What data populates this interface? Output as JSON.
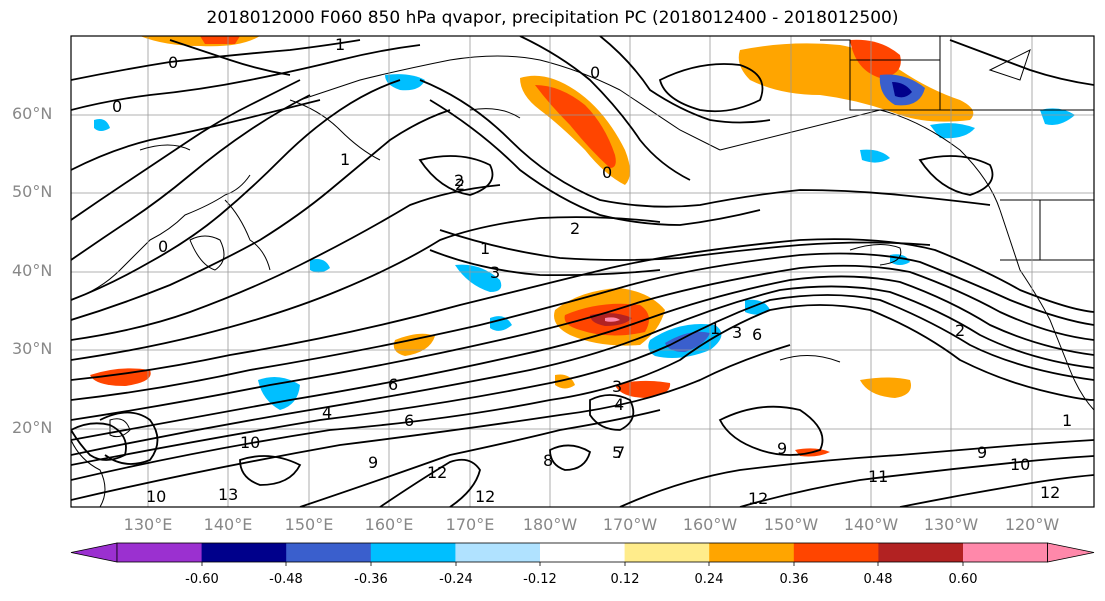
{
  "title": "2018012000 F060 850 hPa qvapor, precipitation PC (2018012400 - 2018012500)",
  "lat_labels": [
    "60°N",
    "50°N",
    "40°N",
    "30°N",
    "20°N"
  ],
  "lon_labels": [
    "130°E",
    "140°E",
    "150°E",
    "160°E",
    "170°E",
    "180°W",
    "170°W",
    "160°W",
    "150°W",
    "140°W",
    "130°W",
    "120°W"
  ],
  "colorbar": {
    "ticks": [
      "-0.60",
      "-0.48",
      "-0.36",
      "-0.24",
      "-0.12",
      "0.12",
      "0.24",
      "0.36",
      "0.48",
      "0.60"
    ],
    "colors": [
      "#9b30d0",
      "#00008b",
      "#3a5fcd",
      "#00bfff",
      "#b0e2ff",
      "#ffffff",
      "#ffec8b",
      "#ffa500",
      "#ff4500",
      "#b22222",
      "#ff88aa",
      "#ff88aa"
    ]
  },
  "contour_labels": [
    "1",
    "0",
    "0",
    "0",
    "1",
    "2",
    "1",
    "2",
    "3",
    "0",
    "1",
    "2",
    "3",
    "4",
    "6",
    "4",
    "10",
    "6",
    "9",
    "12",
    "10",
    "13",
    "12",
    "9",
    "5",
    "8",
    "9",
    "10",
    "11",
    "12",
    "12",
    "1",
    "0",
    "2",
    "3",
    "6",
    "7"
  ]
}
